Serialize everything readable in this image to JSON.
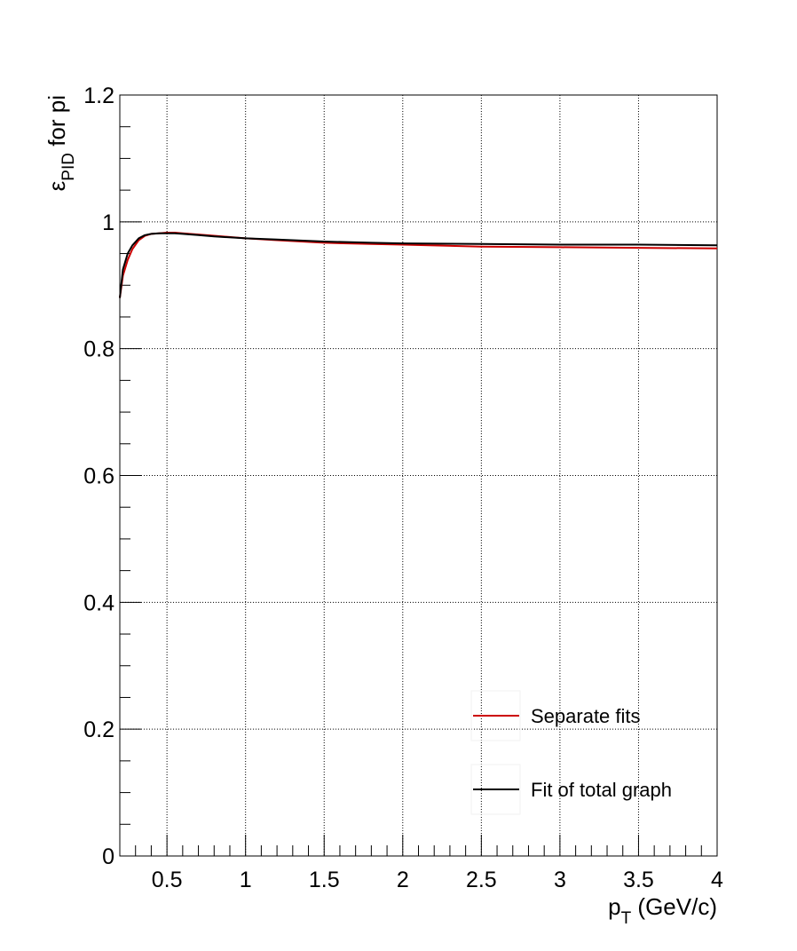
{
  "chart_data": {
    "type": "line",
    "xlabel_main": "p",
    "xlabel_sub": "T",
    "xlabel_rest": " (GeV/c)",
    "ylabel_main": "ε",
    "ylabel_sub": "PID",
    "ylabel_rest": " for pi",
    "xlim": [
      0.2,
      4.0
    ],
    "ylim": [
      0,
      1.2
    ],
    "x_ticks": [
      0.5,
      1,
      1.5,
      2,
      2.5,
      3,
      3.5,
      4
    ],
    "x_tick_labels": [
      "0.5",
      "1",
      "1.5",
      "2",
      "2.5",
      "3",
      "3.5",
      "4"
    ],
    "y_ticks": [
      0,
      0.2,
      0.4,
      0.6,
      0.8,
      1,
      1.2
    ],
    "y_tick_labels": [
      "0",
      "0.2",
      "0.4",
      "0.6",
      "0.8",
      "1",
      "1.2"
    ],
    "grid": true,
    "legend_position": "bottom-right",
    "series": [
      {
        "name": "Separate fits",
        "color": "#cc0000",
        "x": [
          0.2,
          0.22,
          0.25,
          0.28,
          0.32,
          0.36,
          0.4,
          0.45,
          0.5,
          0.55,
          0.6,
          0.7,
          0.8,
          1.0,
          1.2,
          1.5,
          1.8,
          2.0,
          2.5,
          3.0,
          3.5,
          4.0
        ],
        "y": [
          0.88,
          0.915,
          0.94,
          0.957,
          0.971,
          0.978,
          0.981,
          0.982,
          0.983,
          0.983,
          0.982,
          0.98,
          0.978,
          0.974,
          0.971,
          0.967,
          0.965,
          0.964,
          0.961,
          0.96,
          0.959,
          0.958
        ]
      },
      {
        "name": "Fit of total graph",
        "color": "#000000",
        "x": [
          0.2,
          0.22,
          0.25,
          0.28,
          0.32,
          0.36,
          0.4,
          0.45,
          0.5,
          0.55,
          0.6,
          0.7,
          0.8,
          1.0,
          1.2,
          1.5,
          1.8,
          2.0,
          2.5,
          3.0,
          3.5,
          4.0
        ],
        "y": [
          0.88,
          0.925,
          0.95,
          0.963,
          0.974,
          0.979,
          0.981,
          0.982,
          0.982,
          0.982,
          0.981,
          0.979,
          0.977,
          0.974,
          0.972,
          0.969,
          0.967,
          0.966,
          0.965,
          0.964,
          0.964,
          0.963
        ]
      }
    ]
  }
}
